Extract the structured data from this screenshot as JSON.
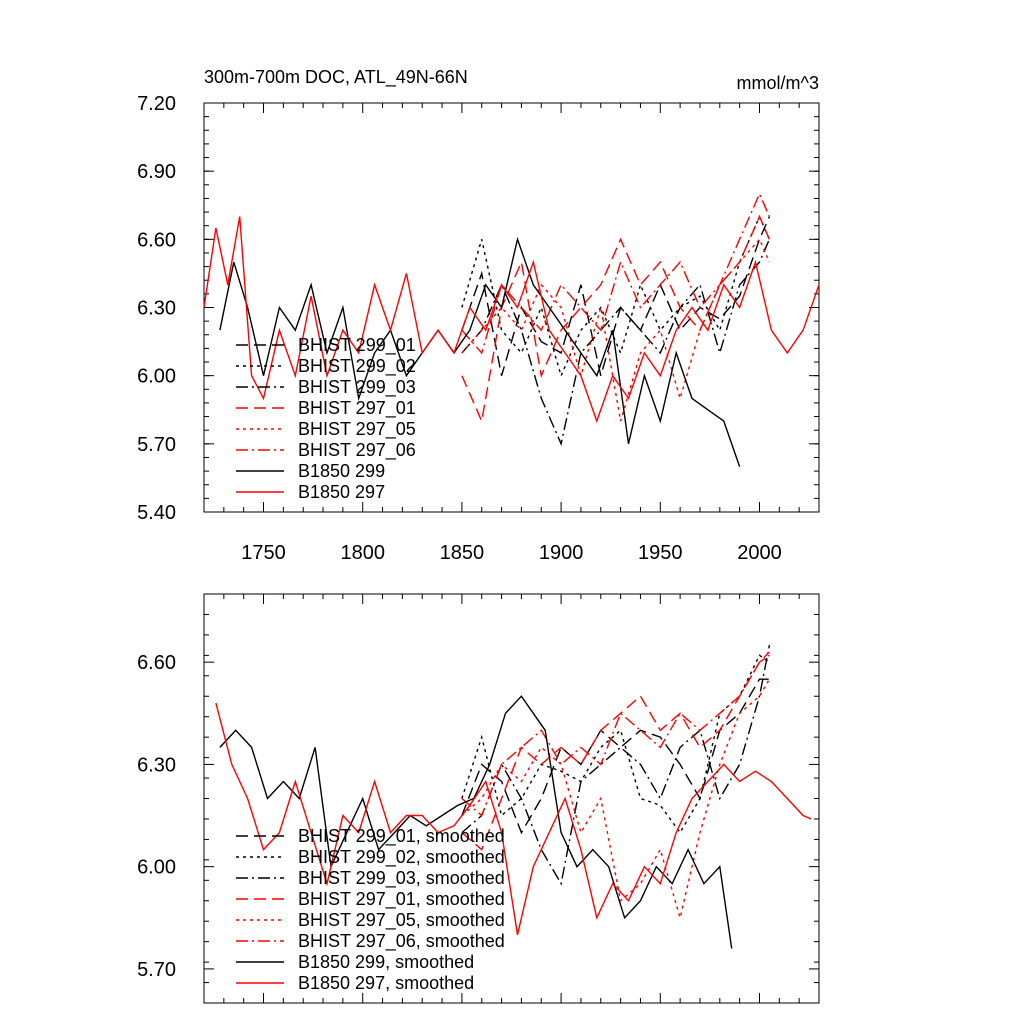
{
  "chart_data": [
    {
      "type": "line",
      "title": "300m-700m DOC, ATL_49N-66N",
      "units": "mmol/m^3",
      "xlim": [
        1720,
        2030
      ],
      "ylim": [
        5.4,
        7.2
      ],
      "yticks": [
        "5.40",
        "5.70",
        "6.00",
        "6.30",
        "6.60",
        "6.90",
        "7.20"
      ],
      "xticks": [
        "1750",
        "1800",
        "1850",
        "1900",
        "1950",
        "2000"
      ],
      "legend_position": "lower-left",
      "series": [
        {
          "name": "BHIST 299_01",
          "color": "#000000",
          "dash": "dashed",
          "x": [
            1850,
            1860,
            1870,
            1880,
            1890,
            1900,
            1910,
            1920,
            1930,
            1940,
            1950,
            1960,
            1970,
            1980,
            1990,
            2000,
            2005
          ],
          "values": [
            6.2,
            6.45,
            6.0,
            6.3,
            6.15,
            6.1,
            6.4,
            6.0,
            6.3,
            6.2,
            6.4,
            6.2,
            6.3,
            6.25,
            6.35,
            6.6,
            6.7
          ]
        },
        {
          "name": "BHIST 299_02",
          "color": "#000000",
          "dash": "dotted",
          "x": [
            1850,
            1860,
            1870,
            1880,
            1890,
            1900,
            1910,
            1920,
            1930,
            1940,
            1950,
            1960,
            1970,
            1980,
            1990,
            2000,
            2005
          ],
          "values": [
            6.3,
            6.6,
            6.2,
            6.1,
            6.3,
            6.0,
            6.2,
            6.3,
            6.1,
            6.4,
            6.2,
            6.3,
            6.35,
            6.2,
            6.5,
            6.7,
            6.6
          ]
        },
        {
          "name": "BHIST 299_03",
          "color": "#000000",
          "dash": "dashdot",
          "x": [
            1850,
            1860,
            1870,
            1880,
            1890,
            1900,
            1910,
            1920,
            1930,
            1940,
            1950,
            1960,
            1970,
            1980,
            1990,
            2000,
            2005
          ],
          "values": [
            6.1,
            6.2,
            6.4,
            6.2,
            5.9,
            5.7,
            6.1,
            6.2,
            6.3,
            6.2,
            6.1,
            6.3,
            6.4,
            6.1,
            6.4,
            6.5,
            6.6
          ]
        },
        {
          "name": "BHIST 297_01",
          "color": "#ff0000",
          "dash": "dashed",
          "x": [
            1850,
            1860,
            1870,
            1880,
            1890,
            1900,
            1910,
            1920,
            1930,
            1940,
            1950,
            1960,
            1970,
            1980,
            1990,
            2000,
            2005
          ],
          "values": [
            6.0,
            5.8,
            6.3,
            6.5,
            6.0,
            6.2,
            6.3,
            6.4,
            6.6,
            6.4,
            6.5,
            6.3,
            6.2,
            6.4,
            6.5,
            6.7,
            6.6
          ]
        },
        {
          "name": "BHIST 297_05",
          "color": "#ff0000",
          "dash": "dotted",
          "x": [
            1850,
            1860,
            1870,
            1880,
            1890,
            1900,
            1910,
            1920,
            1930,
            1940,
            1950,
            1960,
            1970,
            1980,
            1990,
            2000,
            2005
          ],
          "values": [
            6.1,
            6.2,
            6.3,
            6.2,
            6.4,
            6.3,
            6.0,
            6.3,
            5.8,
            6.1,
            6.2,
            5.9,
            6.2,
            6.4,
            6.5,
            6.6,
            6.5
          ]
        },
        {
          "name": "BHIST 297_06",
          "color": "#ff0000",
          "dash": "dashdot",
          "x": [
            1850,
            1860,
            1870,
            1880,
            1890,
            1900,
            1910,
            1920,
            1930,
            1940,
            1950,
            1960,
            1970,
            1980,
            1990,
            2000,
            2005
          ],
          "values": [
            6.2,
            6.1,
            6.4,
            6.3,
            6.2,
            6.4,
            6.3,
            6.2,
            6.5,
            6.3,
            6.4,
            6.5,
            6.3,
            6.4,
            6.6,
            6.8,
            6.7
          ]
        },
        {
          "name": "B1850 299",
          "color": "#000000",
          "dash": "solid",
          "x": [
            1728,
            1735,
            1742,
            1750,
            1758,
            1766,
            1774,
            1782,
            1790,
            1798,
            1806,
            1814,
            1822,
            1830,
            1838,
            1846,
            1854,
            1862,
            1870,
            1878,
            1886,
            1894,
            1902,
            1910,
            1918,
            1926,
            1934,
            1942,
            1950,
            1958,
            1966,
            1974,
            1982,
            1990
          ],
          "values": [
            6.2,
            6.5,
            6.3,
            6.0,
            6.3,
            6.2,
            6.4,
            6.1,
            6.3,
            5.9,
            6.1,
            6.2,
            6.0,
            6.1,
            6.2,
            6.1,
            6.2,
            6.4,
            6.3,
            6.6,
            6.4,
            6.3,
            6.2,
            6.1,
            6.0,
            6.2,
            5.7,
            6.0,
            5.8,
            6.1,
            5.9,
            5.85,
            5.8,
            5.6
          ]
        },
        {
          "name": "B1850 297",
          "color": "#ff0000",
          "dash": "solid",
          "x": [
            1720,
            1726,
            1732,
            1738,
            1744,
            1750,
            1758,
            1766,
            1774,
            1782,
            1790,
            1798,
            1806,
            1814,
            1822,
            1830,
            1838,
            1846,
            1854,
            1862,
            1870,
            1878,
            1886,
            1894,
            1902,
            1910,
            1918,
            1926,
            1934,
            1942,
            1950,
            1958,
            1966,
            1974,
            1982,
            1990,
            1998,
            2006,
            2014,
            2022,
            2030
          ],
          "values": [
            6.3,
            6.65,
            6.4,
            6.7,
            6.0,
            5.9,
            6.2,
            6.0,
            6.35,
            6.0,
            6.2,
            6.1,
            6.4,
            6.2,
            6.45,
            6.1,
            6.2,
            6.1,
            6.3,
            6.2,
            6.4,
            6.3,
            6.5,
            6.2,
            6.1,
            6.0,
            5.8,
            6.0,
            5.9,
            6.1,
            6.0,
            6.2,
            6.3,
            6.2,
            6.4,
            6.3,
            6.5,
            6.2,
            6.1,
            6.2,
            6.4
          ]
        }
      ]
    },
    {
      "type": "line",
      "title": "",
      "xlim": [
        1720,
        2030
      ],
      "ylim": [
        5.6,
        6.8
      ],
      "yticks": [
        "5.70",
        "6.00",
        "6.30",
        "6.60"
      ],
      "legend_position": "lower-left",
      "series": [
        {
          "name": "BHIST 299_01, smoothed",
          "color": "#000000",
          "dash": "dashed",
          "x": [
            1850,
            1860,
            1870,
            1880,
            1890,
            1900,
            1910,
            1920,
            1930,
            1940,
            1950,
            1960,
            1970,
            1980,
            1990,
            2000,
            2005
          ],
          "values": [
            6.15,
            6.3,
            6.25,
            6.1,
            6.2,
            6.35,
            6.3,
            6.4,
            6.35,
            6.4,
            6.38,
            6.3,
            6.2,
            6.4,
            6.45,
            6.55,
            6.55
          ]
        },
        {
          "name": "BHIST 299_02, smoothed",
          "color": "#000000",
          "dash": "dotted",
          "x": [
            1850,
            1860,
            1870,
            1880,
            1890,
            1900,
            1910,
            1920,
            1930,
            1940,
            1950,
            1960,
            1970,
            1980,
            1990,
            2000,
            2005
          ],
          "values": [
            6.2,
            6.38,
            6.15,
            6.2,
            6.3,
            6.28,
            6.25,
            6.35,
            6.4,
            6.2,
            6.18,
            6.1,
            6.2,
            6.45,
            6.5,
            6.62,
            6.6
          ]
        },
        {
          "name": "BHIST 299_03, smoothed",
          "color": "#000000",
          "dash": "dashdot",
          "x": [
            1850,
            1860,
            1870,
            1880,
            1890,
            1900,
            1910,
            1920,
            1930,
            1940,
            1950,
            1960,
            1970,
            1980,
            1990,
            2000,
            2005
          ],
          "values": [
            6.1,
            6.15,
            6.3,
            6.2,
            6.05,
            5.95,
            6.25,
            6.3,
            6.35,
            6.3,
            6.2,
            6.35,
            6.4,
            6.2,
            6.3,
            6.5,
            6.65
          ]
        },
        {
          "name": "BHIST 297_01, smoothed",
          "color": "#ff0000",
          "dash": "dashed",
          "x": [
            1850,
            1860,
            1870,
            1880,
            1890,
            1900,
            1910,
            1920,
            1930,
            1940,
            1950,
            1960,
            1970,
            1980,
            1990,
            2000,
            2005
          ],
          "values": [
            6.1,
            6.05,
            6.2,
            6.35,
            6.3,
            6.35,
            6.3,
            6.4,
            6.45,
            6.5,
            6.4,
            6.45,
            6.35,
            6.4,
            6.5,
            6.6,
            6.63
          ]
        },
        {
          "name": "BHIST 297_05, smoothed",
          "color": "#ff0000",
          "dash": "dotted",
          "x": [
            1850,
            1860,
            1870,
            1880,
            1890,
            1900,
            1910,
            1920,
            1930,
            1940,
            1950,
            1960,
            1970,
            1980,
            1990,
            2000,
            2005
          ],
          "values": [
            6.15,
            6.2,
            6.3,
            6.25,
            6.35,
            6.3,
            6.1,
            6.2,
            5.9,
            5.95,
            6.05,
            5.85,
            6.1,
            6.3,
            6.45,
            6.5,
            6.55
          ]
        },
        {
          "name": "BHIST 297_06, smoothed",
          "color": "#ff0000",
          "dash": "dashdot",
          "x": [
            1850,
            1860,
            1870,
            1880,
            1890,
            1900,
            1910,
            1920,
            1930,
            1940,
            1950,
            1960,
            1970,
            1980,
            1990,
            2000,
            2005
          ],
          "values": [
            6.2,
            6.15,
            6.3,
            6.35,
            6.4,
            6.3,
            6.35,
            6.3,
            6.45,
            6.4,
            6.35,
            6.45,
            6.4,
            6.45,
            6.5,
            6.6,
            6.62
          ]
        },
        {
          "name": "B1850 299, smoothed",
          "color": "#000000",
          "dash": "solid",
          "x": [
            1728,
            1736,
            1744,
            1752,
            1760,
            1768,
            1776,
            1784,
            1792,
            1800,
            1808,
            1816,
            1824,
            1832,
            1840,
            1848,
            1856,
            1864,
            1872,
            1880,
            1886,
            1892,
            1900,
            1908,
            1916,
            1924,
            1932,
            1940,
            1948,
            1956,
            1964,
            1972,
            1980,
            1986
          ],
          "values": [
            6.35,
            6.4,
            6.35,
            6.2,
            6.25,
            6.2,
            6.35,
            6.0,
            6.1,
            6.2,
            6.05,
            6.1,
            6.15,
            6.12,
            6.15,
            6.18,
            6.2,
            6.3,
            6.45,
            6.5,
            6.45,
            6.4,
            6.1,
            6.0,
            6.05,
            6.0,
            5.85,
            5.9,
            6.0,
            5.95,
            6.05,
            5.95,
            6.0,
            5.76
          ]
        },
        {
          "name": "B1850 297, smoothed",
          "color": "#ff0000",
          "dash": "solid",
          "x": [
            1726,
            1734,
            1742,
            1750,
            1758,
            1766,
            1774,
            1782,
            1790,
            1798,
            1806,
            1814,
            1822,
            1830,
            1838,
            1846,
            1854,
            1862,
            1870,
            1878,
            1886,
            1894,
            1902,
            1910,
            1918,
            1926,
            1934,
            1942,
            1950,
            1958,
            1966,
            1974,
            1982,
            1990,
            1998,
            2006,
            2014,
            2022,
            2026
          ],
          "values": [
            6.48,
            6.3,
            6.2,
            6.05,
            6.1,
            6.25,
            6.1,
            5.95,
            6.15,
            6.1,
            6.25,
            6.1,
            6.15,
            6.15,
            6.1,
            6.12,
            6.18,
            6.25,
            6.1,
            5.8,
            6.0,
            6.1,
            6.2,
            6.05,
            5.85,
            5.95,
            5.9,
            6.0,
            5.95,
            6.1,
            6.2,
            6.25,
            6.3,
            6.25,
            6.28,
            6.25,
            6.2,
            6.15,
            6.14
          ]
        }
      ]
    }
  ]
}
